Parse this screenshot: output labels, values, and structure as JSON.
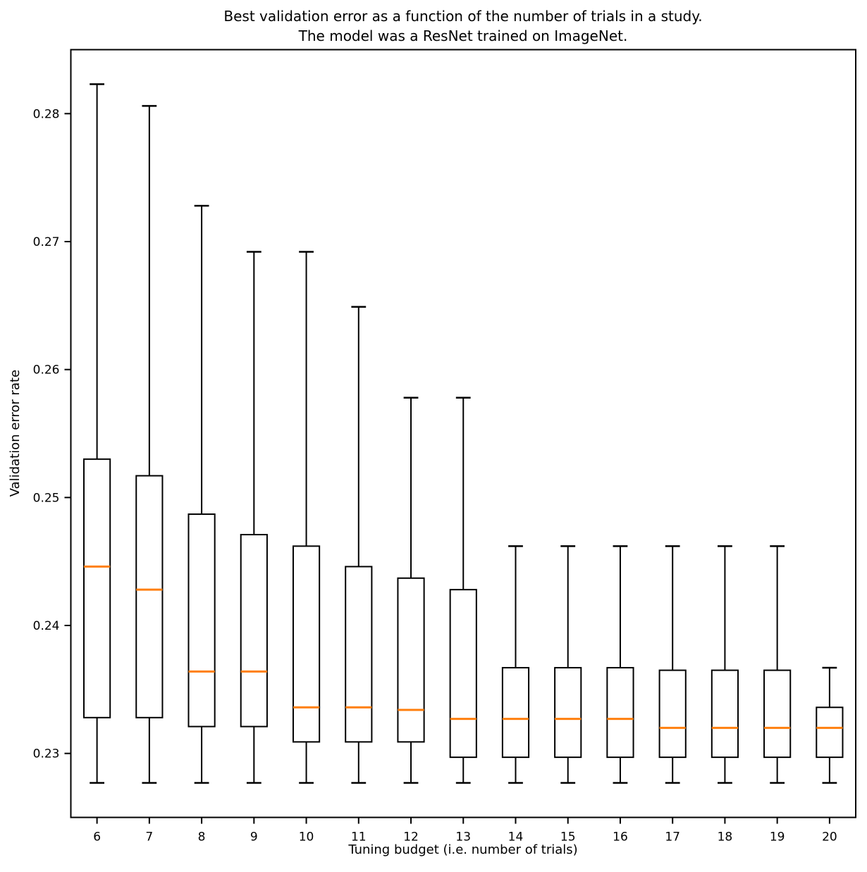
{
  "chart_data": {
    "type": "box",
    "title_line1": "Best validation error as a function of the number of trials in a study.",
    "title_line2": "The model was a ResNet trained on ImageNet.",
    "xlabel": "Tuning budget (i.e. number of trials)",
    "ylabel": "Validation error rate",
    "categories": [
      6,
      7,
      8,
      9,
      10,
      11,
      12,
      13,
      14,
      15,
      16,
      17,
      18,
      19,
      20
    ],
    "boxes": [
      {
        "budget": 6,
        "whisker_low": 0.2277,
        "q1": 0.2328,
        "median": 0.2446,
        "q3": 0.253,
        "whisker_high": 0.2823
      },
      {
        "budget": 7,
        "whisker_low": 0.2277,
        "q1": 0.2328,
        "median": 0.2428,
        "q3": 0.2517,
        "whisker_high": 0.2806
      },
      {
        "budget": 8,
        "whisker_low": 0.2277,
        "q1": 0.2321,
        "median": 0.2364,
        "q3": 0.2487,
        "whisker_high": 0.2728
      },
      {
        "budget": 9,
        "whisker_low": 0.2277,
        "q1": 0.2321,
        "median": 0.2364,
        "q3": 0.2471,
        "whisker_high": 0.2692
      },
      {
        "budget": 10,
        "whisker_low": 0.2277,
        "q1": 0.2309,
        "median": 0.2336,
        "q3": 0.2462,
        "whisker_high": 0.2692
      },
      {
        "budget": 11,
        "whisker_low": 0.2277,
        "q1": 0.2309,
        "median": 0.2336,
        "q3": 0.2446,
        "whisker_high": 0.2649
      },
      {
        "budget": 12,
        "whisker_low": 0.2277,
        "q1": 0.2309,
        "median": 0.2334,
        "q3": 0.2437,
        "whisker_high": 0.2578
      },
      {
        "budget": 13,
        "whisker_low": 0.2277,
        "q1": 0.2297,
        "median": 0.2327,
        "q3": 0.2428,
        "whisker_high": 0.2578
      },
      {
        "budget": 14,
        "whisker_low": 0.2277,
        "q1": 0.2297,
        "median": 0.2327,
        "q3": 0.2367,
        "whisker_high": 0.2462
      },
      {
        "budget": 15,
        "whisker_low": 0.2277,
        "q1": 0.2297,
        "median": 0.2327,
        "q3": 0.2367,
        "whisker_high": 0.2462
      },
      {
        "budget": 16,
        "whisker_low": 0.2277,
        "q1": 0.2297,
        "median": 0.2327,
        "q3": 0.2367,
        "whisker_high": 0.2462
      },
      {
        "budget": 17,
        "whisker_low": 0.2277,
        "q1": 0.2297,
        "median": 0.232,
        "q3": 0.2365,
        "whisker_high": 0.2462
      },
      {
        "budget": 18,
        "whisker_low": 0.2277,
        "q1": 0.2297,
        "median": 0.232,
        "q3": 0.2365,
        "whisker_high": 0.2462
      },
      {
        "budget": 19,
        "whisker_low": 0.2277,
        "q1": 0.2297,
        "median": 0.232,
        "q3": 0.2365,
        "whisker_high": 0.2462
      },
      {
        "budget": 20,
        "whisker_low": 0.2277,
        "q1": 0.2297,
        "median": 0.232,
        "q3": 0.2336,
        "whisker_high": 0.2367
      }
    ],
    "ytick_labels": [
      "0.23",
      "0.24",
      "0.25",
      "0.26",
      "0.27",
      "0.28"
    ],
    "yticks": [
      0.23,
      0.24,
      0.25,
      0.26,
      0.27,
      0.28
    ],
    "ylim": [
      0.225,
      0.285
    ],
    "xlim": [
      5.5,
      20.5
    ],
    "grid": false,
    "legend": "none",
    "colors": {
      "box_line": "#000000",
      "median_line": "#ff7f0e",
      "background": "#ffffff"
    }
  }
}
